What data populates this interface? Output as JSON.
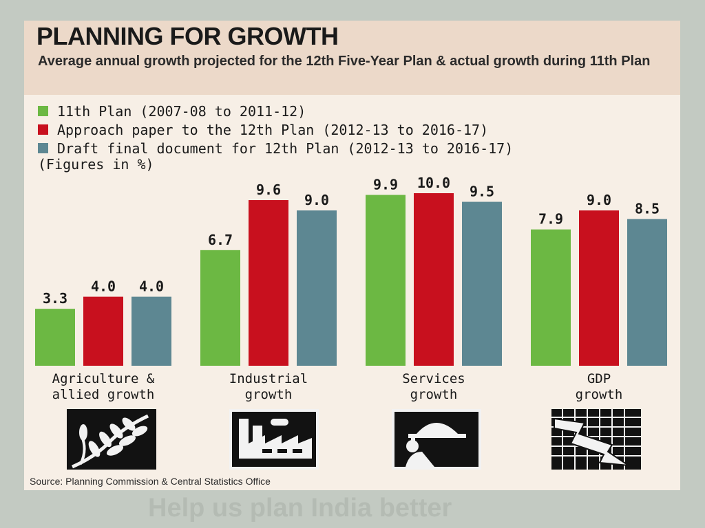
{
  "chart_data": {
    "type": "bar",
    "title": "PLANNING FOR GROWTH",
    "subtitle": "Average annual growth projected for the 12th Five-Year Plan & actual growth during 11th Plan",
    "unit_note": "(Figures in %)",
    "categories": [
      [
        "Agriculture &",
        "allied growth"
      ],
      [
        "Industrial",
        "growth"
      ],
      [
        "Services",
        "growth"
      ],
      [
        "GDP",
        "growth"
      ]
    ],
    "series": [
      {
        "name": "11th Plan (2007-08 to 2011-12)",
        "color": "#6cb843",
        "values": [
          3.3,
          6.7,
          9.9,
          7.9
        ],
        "labels": [
          "3.3",
          "6.7",
          "9.9",
          "7.9"
        ]
      },
      {
        "name": "Approach paper to the 12th Plan (2012-13 to 2016-17)",
        "color": "#c8101e",
        "values": [
          4.0,
          9.6,
          10.0,
          9.0
        ],
        "labels": [
          "4.0",
          "9.6",
          "10.0",
          "9.0"
        ]
      },
      {
        "name": "Draft final document for 12th Plan (2012-13 to 2016-17)",
        "color": "#5d8792",
        "values": [
          4.0,
          9.0,
          9.5,
          8.5
        ],
        "labels": [
          "4.0",
          "9.0",
          "9.5",
          "8.5"
        ]
      }
    ],
    "ylim": [
      0,
      10
    ],
    "grid": false,
    "legend": "top-left"
  },
  "icons": [
    "wheat-icon",
    "factory-icon",
    "waiter-icon",
    "falling-graph-icon"
  ],
  "source": "Source: Planning Commission & Central Statistics Office",
  "watermark": "Help us plan India better"
}
